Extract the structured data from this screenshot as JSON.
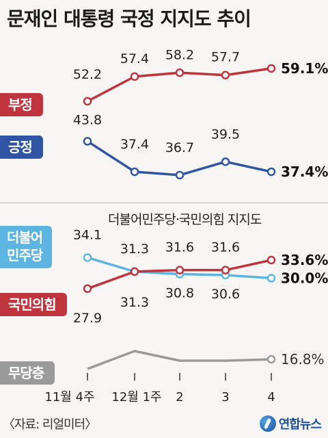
{
  "title": "문재인 대통령 국정 지지도 추이",
  "subtitle": "더불어민주당·국민의힘 지지도",
  "source": "〈자료: 리얼미터〉",
  "logo_text": "연합뉴스",
  "colors": {
    "red": "#c0343d",
    "blue": "#2f54a3",
    "sky": "#5bb5e0",
    "gray": "#9a9a9a"
  },
  "chart_data": [
    {
      "type": "line",
      "title": "문재인 대통령 국정 지지도 추이",
      "categories": [
        "11월 4주",
        "12월 1주",
        "2",
        "3",
        "4"
      ],
      "unit": "%",
      "series": [
        {
          "name": "부정",
          "color": "#c0343d",
          "values": [
            52.2,
            57.4,
            58.2,
            57.7,
            59.1
          ],
          "labels": [
            "52.2",
            "57.4",
            "58.2",
            "57.7",
            "59.1%"
          ]
        },
        {
          "name": "긍정",
          "color": "#2f54a3",
          "values": [
            43.8,
            37.4,
            36.7,
            39.5,
            37.4
          ],
          "labels": [
            "43.8",
            "37.4",
            "36.7",
            "39.5",
            "37.4%"
          ]
        }
      ]
    },
    {
      "type": "line",
      "title": "더불어민주당·국민의힘 지지도",
      "categories": [
        "11월 4주",
        "12월 1주",
        "2",
        "3",
        "4"
      ],
      "unit": "%",
      "series": [
        {
          "name": "더불어민주당",
          "label_lines": [
            "더불어",
            "민주당"
          ],
          "color": "#5bb5e0",
          "values": [
            34.1,
            31.3,
            30.8,
            30.6,
            30.0
          ],
          "labels": [
            "34.1",
            "31.3",
            "30.8",
            "30.6",
            "30.0%"
          ]
        },
        {
          "name": "국민의힘",
          "color": "#c0343d",
          "values": [
            27.9,
            31.3,
            31.6,
            31.6,
            33.6
          ],
          "labels": [
            "27.9",
            "31.3",
            "31.6",
            "31.6",
            "33.6%"
          ]
        },
        {
          "name": "무당층",
          "color": "#9a9a9a",
          "values": [
            null,
            null,
            null,
            null,
            16.8
          ],
          "labels": [
            "",
            "",
            "",
            "",
            "16.8%"
          ]
        }
      ]
    }
  ]
}
